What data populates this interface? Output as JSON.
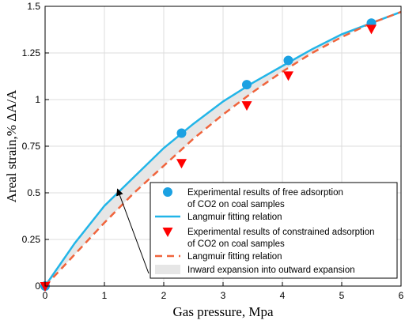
{
  "chart_data": {
    "type": "line",
    "xlabel": "Gas pressure, Mpa",
    "ylabel": "Areal strain,% ΔA/A",
    "xlim": [
      0,
      6
    ],
    "ylim": [
      0,
      1.5
    ],
    "xticks": [
      0,
      1,
      2,
      3,
      4,
      5,
      6
    ],
    "yticks": [
      0,
      0.25,
      0.5,
      0.75,
      1,
      1.25,
      1.5
    ],
    "xtick_labels": [
      "0",
      "1",
      "2",
      "3",
      "4",
      "5",
      "6"
    ],
    "ytick_labels": [
      "0",
      "0.25",
      "0.5",
      "0.75",
      "1",
      "1.25",
      "1.5"
    ],
    "grid": true,
    "legend_position": "bottom-right",
    "series": [
      {
        "name": "Experimental results of free adsorption of CO2 on coal samples",
        "kind": "scatter",
        "marker": "circle",
        "color": "#1ba1e2",
        "x": [
          0,
          2.3,
          3.4,
          4.1,
          5.5
        ],
        "y": [
          0,
          0.82,
          1.08,
          1.21,
          1.41
        ]
      },
      {
        "name": "Langmuir fitting relation",
        "kind": "line",
        "style": "solid",
        "color": "#22b5e8",
        "x": [
          0,
          0.5,
          1,
          1.5,
          2,
          2.5,
          3,
          3.5,
          4,
          4.5,
          5,
          5.5,
          6
        ],
        "y": [
          0,
          0.23,
          0.43,
          0.585,
          0.74,
          0.87,
          0.99,
          1.09,
          1.18,
          1.27,
          1.35,
          1.41,
          1.47
        ]
      },
      {
        "name": "Experimental results of constrained adsorption of CO2 on coal samples",
        "kind": "scatter",
        "marker": "triangle-down",
        "color": "#ff0000",
        "x": [
          0,
          2.3,
          3.4,
          4.1,
          5.5
        ],
        "y": [
          0,
          0.66,
          0.97,
          1.13,
          1.38
        ]
      },
      {
        "name": "Langmuir fitting relation",
        "kind": "line",
        "style": "dashed",
        "color": "#f0643c",
        "x": [
          0,
          0.5,
          1,
          1.5,
          2,
          2.5,
          3,
          3.5,
          4,
          4.5,
          5,
          5.5,
          6
        ],
        "y": [
          0,
          0.17,
          0.34,
          0.5,
          0.645,
          0.79,
          0.92,
          1.04,
          1.15,
          1.25,
          1.335,
          1.41,
          1.47
        ]
      },
      {
        "name": "Inward expansion into outward expansion",
        "kind": "area-between",
        "color": "#e6e6e6"
      }
    ],
    "legend_entries": [
      {
        "marker": "circle",
        "color": "#1ba1e2",
        "lines": [
          "Experimental results of free adsorption",
          "of CO2 on coal samples"
        ]
      },
      {
        "marker": "line-solid",
        "color": "#22b5e8",
        "lines": [
          "Langmuir fitting relation"
        ]
      },
      {
        "marker": "triangle-down",
        "color": "#ff0000",
        "lines": [
          "Experimental results of constrained adsorption",
          "of CO2 on coal samples"
        ]
      },
      {
        "marker": "line-dashed",
        "color": "#f0643c",
        "lines": [
          "Langmuir fitting relation"
        ]
      },
      {
        "marker": "patch",
        "color": "#e6e6e6",
        "lines": [
          "Inward expansion into outward expansion"
        ]
      }
    ],
    "annotation": {
      "type": "arrow",
      "from": [
        1.0,
        0.0
      ],
      "to": [
        0.12,
        0.0
      ]
    }
  }
}
